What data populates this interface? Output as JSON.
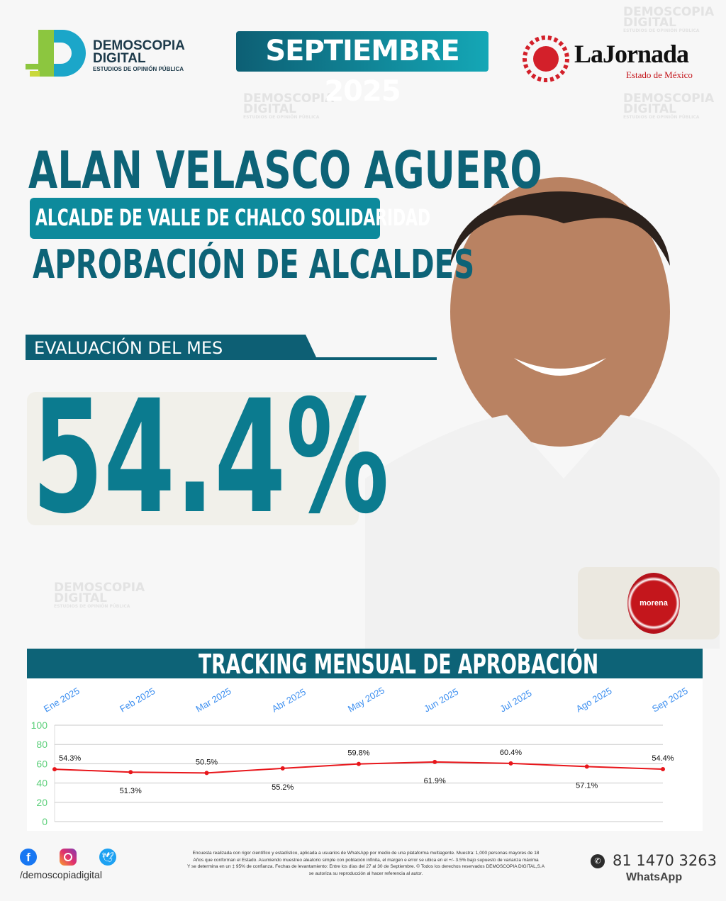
{
  "brand": {
    "name_line1": "DEMOSCOPIA",
    "name_line2": "DIGITAL",
    "tagline": "ESTUDIOS DE OPINIÓN PÚBLICA"
  },
  "header": {
    "period": "SEPTIEMBRE 2025",
    "partner_name": "LaJornada",
    "partner_sub": "Estado de México"
  },
  "headline": {
    "name": "ALAN VELASCO AGUERO",
    "role": "ALCALDE DE VALLE DE CHALCO SOLIDARIDAD",
    "topic": "APROBACIÓN DE ALCALDES"
  },
  "evaluation": {
    "label": "EVALUACIÓN DEL MES",
    "value": "54.4%"
  },
  "party": {
    "name": "morena",
    "color": "#b5121b"
  },
  "colors": {
    "teal": "#0b7b8f",
    "dark_teal": "#0d6377",
    "line": "#e8161b"
  },
  "chart_data": {
    "type": "line",
    "title": "TRACKING MENSUAL DE APROBACIÓN",
    "categories": [
      "Ene 2025",
      "Feb 2025",
      "Mar 2025",
      "Abr 2025",
      "May 2025",
      "Jun 2025",
      "Jul 2025",
      "Ago 2025",
      "Sep 2025"
    ],
    "values": [
      54.3,
      51.3,
      50.5,
      55.2,
      59.8,
      61.9,
      60.4,
      57.1,
      54.4
    ],
    "labels": [
      "54.3%",
      "51.3%",
      "50.5%",
      "55.2%",
      "59.8%",
      "61.9%",
      "60.4%",
      "57.1%",
      "54.4%"
    ],
    "yticks": [
      "0",
      "20",
      "40",
      "60",
      "80",
      "100"
    ],
    "ylim": [
      0,
      100
    ],
    "grid": true
  },
  "footer": {
    "social_handle": "/demoscopiadigital",
    "disclaimer": [
      "Encuesta realizada con rigor científico y estadístico, aplicada a usuarios de WhatsApp por medio de una plataforma multiagente. Muestra: 1,000 personas mayores de 18",
      "Años que conforman el Estado. Asumiendo muestreo aleatorio simple con población infinita, el margen e error se ubica en el +/- 3.5% bajo supuesto de varianza máxima",
      "Y se determina en un ‡ 95% de confianza. Fechas de levantamiento: Entre los días del 27 al 30 de Septiembre. © Todos los derechos reservados DEMOSCOPIA DIGITAL,S.A",
      "se autoriza su reproducción al hacer referencia al autor."
    ],
    "phone": "81 1470 3263",
    "phone_label": "WhatsApp"
  }
}
